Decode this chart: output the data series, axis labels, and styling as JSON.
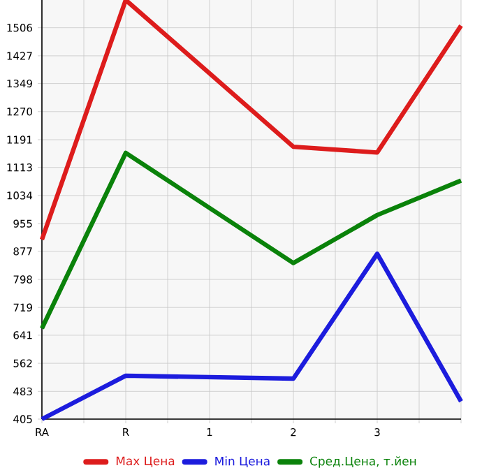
{
  "chart_data": {
    "type": "line",
    "categories": [
      "RA",
      "R",
      "1",
      "2",
      "3",
      null
    ],
    "series": [
      {
        "name": "Max Цена",
        "color": "#dd1c1c",
        "values": [
          910,
          1584,
          null,
          1171,
          1155,
          1512
        ]
      },
      {
        "name": "Min Цена",
        "color": "#1c1cdd",
        "values": [
          405,
          527,
          null,
          519,
          870,
          455
        ]
      },
      {
        "name": "Сред.Цена, т.йен",
        "color": "#0a820a",
        "values": [
          660,
          1154,
          null,
          844,
          979,
          1076
        ]
      }
    ],
    "ylim": [
      405,
      1584
    ],
    "yticks": [
      405,
      483,
      562,
      641,
      719,
      798,
      877,
      955,
      1034,
      1113,
      1191,
      1270,
      1349,
      1427,
      1506
    ],
    "grid": true,
    "legend": "bottom",
    "marker": "none",
    "line_style": "solid"
  }
}
